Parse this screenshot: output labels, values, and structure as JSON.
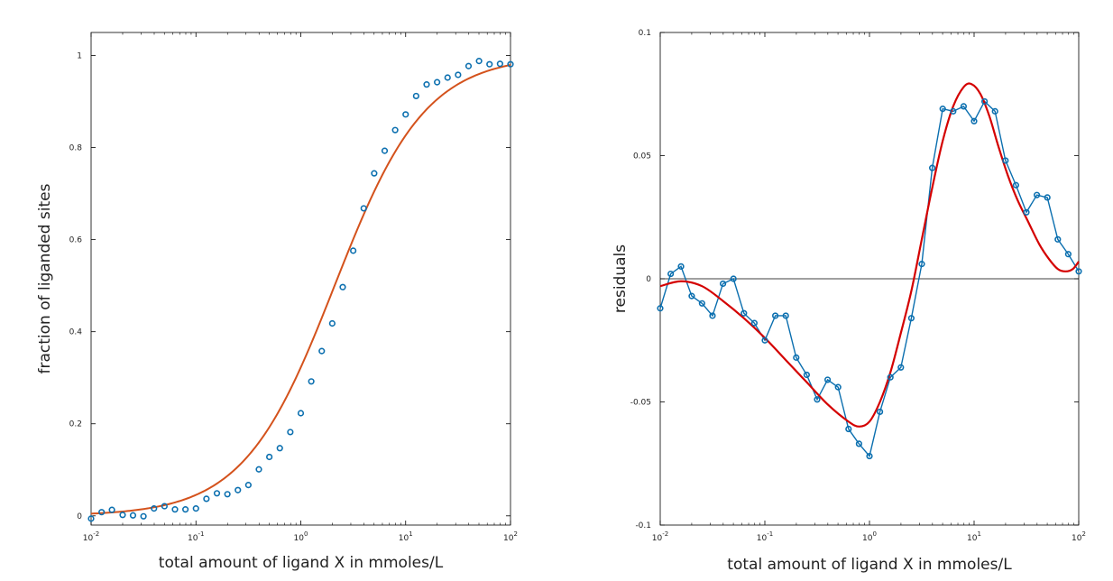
{
  "chart_data": [
    {
      "type": "scatter",
      "title": "",
      "xlabel": "total amount of ligand X in mmoles/L",
      "ylabel": "fraction of liganded sites",
      "x_scale": "log",
      "xlim": [
        0.01,
        100
      ],
      "ylim": [
        -0.02,
        1.05
      ],
      "x_ticks": [
        {
          "value": 0.01,
          "base": "10",
          "exp": "-2"
        },
        {
          "value": 0.1,
          "base": "10",
          "exp": "-1"
        },
        {
          "value": 1,
          "base": "10",
          "exp": "0"
        },
        {
          "value": 10,
          "base": "10",
          "exp": "1"
        },
        {
          "value": 100,
          "base": "10",
          "exp": "2"
        }
      ],
      "y_ticks": [
        {
          "value": 0,
          "label": "0"
        },
        {
          "value": 0.2,
          "label": "0.2"
        },
        {
          "value": 0.4,
          "label": "0.4"
        },
        {
          "value": 0.6,
          "label": "0.6"
        },
        {
          "value": 0.8,
          "label": "0.8"
        },
        {
          "value": 1,
          "label": "1"
        }
      ],
      "grid": false,
      "colors": {
        "points": "#0b6faf",
        "curve": "#d4521c"
      },
      "series": [
        {
          "kind": "points",
          "x": [
            0.01,
            0.0126,
            0.0158,
            0.02,
            0.0251,
            0.0316,
            0.0398,
            0.0501,
            0.0631,
            0.0794,
            0.1,
            0.1259,
            0.1585,
            0.1995,
            0.2512,
            0.3162,
            0.3981,
            0.5012,
            0.631,
            0.7943,
            1.0,
            1.2589,
            1.5849,
            1.9953,
            2.5119,
            3.1623,
            3.9811,
            5.0119,
            6.3096,
            7.9433,
            10.0,
            12.589,
            15.849,
            19.953,
            25.119,
            31.623,
            39.811,
            50.119,
            63.096,
            79.433,
            100.0
          ],
          "y": [
            -0.006,
            0.008,
            0.013,
            0.002,
            0.001,
            -0.001,
            0.016,
            0.021,
            0.014,
            0.014,
            0.016,
            0.037,
            0.049,
            0.047,
            0.056,
            0.067,
            0.101,
            0.128,
            0.147,
            0.182,
            0.223,
            0.292,
            0.358,
            0.418,
            0.497,
            0.576,
            0.668,
            0.744,
            0.793,
            0.838,
            0.872,
            0.912,
            0.937,
            0.942,
            0.952,
            0.958,
            0.977,
            0.988,
            0.981,
            0.982,
            0.981
          ]
        },
        {
          "kind": "fit-curve",
          "model": "hill",
          "params": {
            "K": 2.1,
            "n": 1.0,
            "offset": 0.0
          }
        }
      ]
    },
    {
      "type": "line",
      "title": "",
      "xlabel": "total amount of ligand X in mmoles/L",
      "ylabel": "residuals",
      "x_scale": "log",
      "xlim": [
        0.01,
        100
      ],
      "ylim": [
        -0.1,
        0.1
      ],
      "x_ticks": [
        {
          "value": 0.01,
          "base": "10",
          "exp": "-2"
        },
        {
          "value": 0.1,
          "base": "10",
          "exp": "-1"
        },
        {
          "value": 1,
          "base": "10",
          "exp": "0"
        },
        {
          "value": 10,
          "base": "10",
          "exp": "1"
        },
        {
          "value": 100,
          "base": "10",
          "exp": "2"
        }
      ],
      "y_ticks": [
        {
          "value": -0.1,
          "label": "-0.1"
        },
        {
          "value": -0.05,
          "label": "-0.05"
        },
        {
          "value": 0,
          "label": "0"
        },
        {
          "value": 0.05,
          "label": "0.05"
        },
        {
          "value": 0.1,
          "label": "0.1"
        }
      ],
      "zero_line": true,
      "grid": false,
      "colors": {
        "points": "#0b6faf",
        "smooth": "#d40000",
        "zero": "#000000"
      },
      "series": [
        {
          "kind": "points-line",
          "x": [
            0.01,
            0.0126,
            0.0158,
            0.02,
            0.0251,
            0.0316,
            0.0398,
            0.0501,
            0.0631,
            0.0794,
            0.1,
            0.1259,
            0.1585,
            0.1995,
            0.2512,
            0.3162,
            0.3981,
            0.5012,
            0.631,
            0.7943,
            1.0,
            1.2589,
            1.5849,
            1.9953,
            2.5119,
            3.1623,
            3.9811,
            5.0119,
            6.3096,
            7.9433,
            10.0,
            12.589,
            15.849,
            19.953,
            25.119,
            31.623,
            39.811,
            50.119,
            63.096,
            79.433,
            100.0
          ],
          "y": [
            -0.012,
            0.002,
            0.005,
            -0.007,
            -0.01,
            -0.015,
            -0.002,
            0.0,
            -0.014,
            -0.018,
            -0.025,
            -0.015,
            -0.015,
            -0.032,
            -0.039,
            -0.049,
            -0.041,
            -0.044,
            -0.061,
            -0.067,
            -0.072,
            -0.054,
            -0.04,
            -0.036,
            -0.016,
            0.006,
            0.045,
            0.069,
            0.068,
            0.07,
            0.064,
            0.072,
            0.068,
            0.048,
            0.038,
            0.027,
            0.034,
            0.033,
            0.016,
            0.01,
            0.003
          ]
        },
        {
          "kind": "smooth-curve",
          "x": [
            0.01,
            0.0158,
            0.0251,
            0.0398,
            0.0631,
            0.1,
            0.1585,
            0.2512,
            0.3981,
            0.631,
            0.8,
            1.0,
            1.2589,
            1.5849,
            1.9953,
            2.5119,
            3.1623,
            3.9811,
            5.0119,
            6.3096,
            8.0,
            9.5,
            11.5,
            14.0,
            17.0,
            21.0,
            26.0,
            33.0,
            42.0,
            52.0,
            63.0,
            75.0,
            88.0,
            100.0
          ],
          "y": [
            -0.003,
            -0.001,
            -0.003,
            -0.009,
            -0.016,
            -0.024,
            -0.033,
            -0.042,
            -0.051,
            -0.058,
            -0.06,
            -0.058,
            -0.05,
            -0.038,
            -0.022,
            -0.005,
            0.016,
            0.037,
            0.056,
            0.07,
            0.078,
            0.079,
            0.075,
            0.066,
            0.054,
            0.042,
            0.032,
            0.023,
            0.014,
            0.008,
            0.004,
            0.003,
            0.004,
            0.007
          ]
        }
      ]
    }
  ]
}
